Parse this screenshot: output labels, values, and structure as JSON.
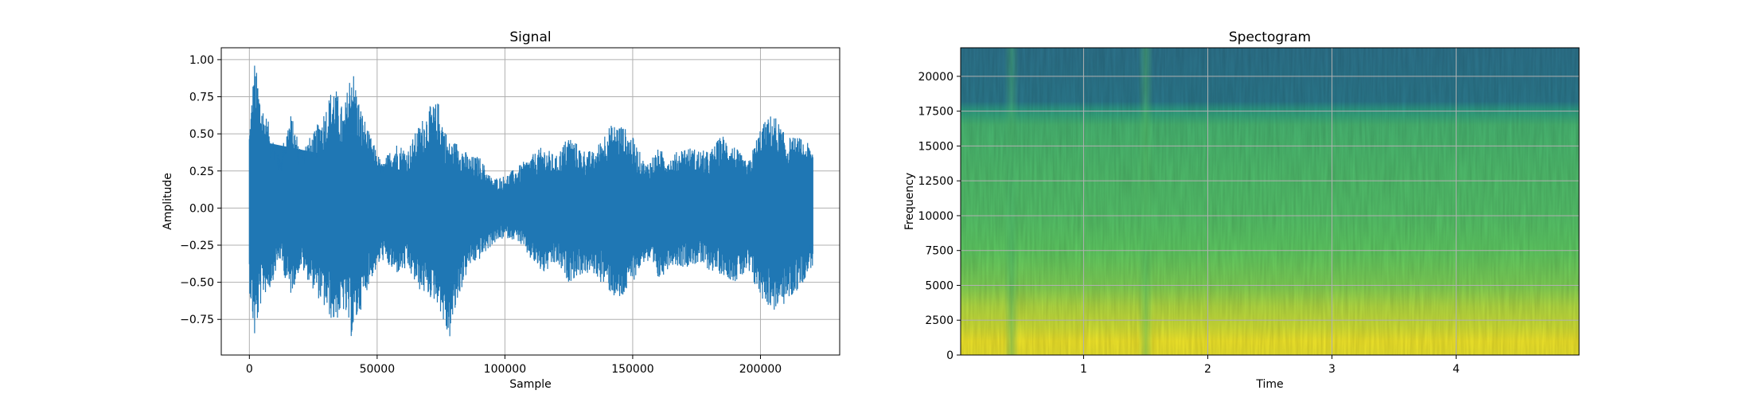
{
  "chart_data": [
    {
      "type": "line",
      "title": "Signal",
      "xlabel": "Sample",
      "ylabel": "Amplitude",
      "xlim": [
        -11000,
        231000
      ],
      "ylim": [
        -0.99,
        1.08
      ],
      "grid": true,
      "series_color": "#1f77b4",
      "x_ticks": [
        0,
        50000,
        100000,
        150000,
        200000
      ],
      "x_tick_labels": [
        "0",
        "50000",
        "100000",
        "150000",
        "200000"
      ],
      "y_ticks": [
        -0.75,
        -0.5,
        -0.25,
        0.0,
        0.25,
        0.5,
        0.75,
        1.0
      ],
      "y_tick_labels": [
        "−0.75",
        "−0.50",
        "−0.25",
        "0.00",
        "0.25",
        "0.50",
        "0.75",
        "1.00"
      ],
      "envelope": {
        "x": [
          0,
          2000,
          5000,
          8000,
          12000,
          16000,
          20000,
          25000,
          30000,
          33000,
          37000,
          40000,
          43000,
          47000,
          52000,
          57000,
          62000,
          66000,
          70000,
          74000,
          78000,
          82000,
          86000,
          90000,
          95000,
          100000,
          105000,
          110000,
          115000,
          120000,
          125000,
          130000,
          135000,
          140000,
          145000,
          150000,
          155000,
          160000,
          165000,
          170000,
          175000,
          180000,
          185000,
          190000,
          195000,
          200000,
          205000,
          210000,
          215000,
          220000
        ],
        "upper": [
          0.55,
          1.0,
          0.72,
          0.55,
          0.35,
          0.65,
          0.42,
          0.5,
          0.7,
          0.85,
          0.65,
          1.0,
          0.72,
          0.5,
          0.3,
          0.45,
          0.4,
          0.55,
          0.68,
          0.72,
          0.45,
          0.45,
          0.35,
          0.35,
          0.2,
          0.22,
          0.28,
          0.35,
          0.42,
          0.35,
          0.5,
          0.4,
          0.38,
          0.55,
          0.58,
          0.48,
          0.3,
          0.4,
          0.35,
          0.42,
          0.4,
          0.38,
          0.5,
          0.42,
          0.3,
          0.55,
          0.65,
          0.48,
          0.48,
          0.42
        ],
        "lower": [
          -0.55,
          -0.9,
          -0.6,
          -0.55,
          -0.35,
          -0.6,
          -0.4,
          -0.55,
          -0.7,
          -0.78,
          -0.7,
          -0.88,
          -0.72,
          -0.5,
          -0.35,
          -0.45,
          -0.42,
          -0.55,
          -0.6,
          -0.65,
          -0.92,
          -0.6,
          -0.4,
          -0.35,
          -0.25,
          -0.2,
          -0.22,
          -0.35,
          -0.45,
          -0.38,
          -0.5,
          -0.45,
          -0.45,
          -0.55,
          -0.65,
          -0.5,
          -0.35,
          -0.5,
          -0.38,
          -0.4,
          -0.38,
          -0.42,
          -0.45,
          -0.5,
          -0.45,
          -0.6,
          -0.7,
          -0.65,
          -0.55,
          -0.4
        ]
      },
      "n_samples": 220500
    },
    {
      "type": "heatmap",
      "title": "Spectogram",
      "xlabel": "Time",
      "ylabel": "Frequency",
      "xlim": [
        0.01,
        4.99
      ],
      "ylim": [
        0,
        22050
      ],
      "grid": true,
      "colormap": "viridis",
      "x_ticks": [
        1,
        2,
        3,
        4
      ],
      "x_tick_labels": [
        "1",
        "2",
        "3",
        "4"
      ],
      "y_ticks": [
        0,
        2500,
        5000,
        7500,
        10000,
        12500,
        15000,
        17500,
        20000
      ],
      "y_tick_labels": [
        "0",
        "2500",
        "5000",
        "7500",
        "10000",
        "12500",
        "15000",
        "17500",
        "20000"
      ],
      "cutoff_frequency": 17500,
      "band_levels": [
        {
          "freq": 0,
          "level": 0.97
        },
        {
          "freq": 1000,
          "level": 0.98
        },
        {
          "freq": 2000,
          "level": 0.93
        },
        {
          "freq": 3500,
          "level": 0.88
        },
        {
          "freq": 5000,
          "level": 0.8
        },
        {
          "freq": 7500,
          "level": 0.75
        },
        {
          "freq": 10000,
          "level": 0.71
        },
        {
          "freq": 13000,
          "level": 0.69
        },
        {
          "freq": 16500,
          "level": 0.66
        },
        {
          "freq": 17600,
          "level": 0.55
        },
        {
          "freq": 18200,
          "level": 0.4
        },
        {
          "freq": 22050,
          "level": 0.38
        }
      ],
      "quiet_time_bands": [
        {
          "time": 0.42,
          "level": 0.68
        },
        {
          "time": 1.5,
          "level": 0.72
        }
      ]
    }
  ]
}
